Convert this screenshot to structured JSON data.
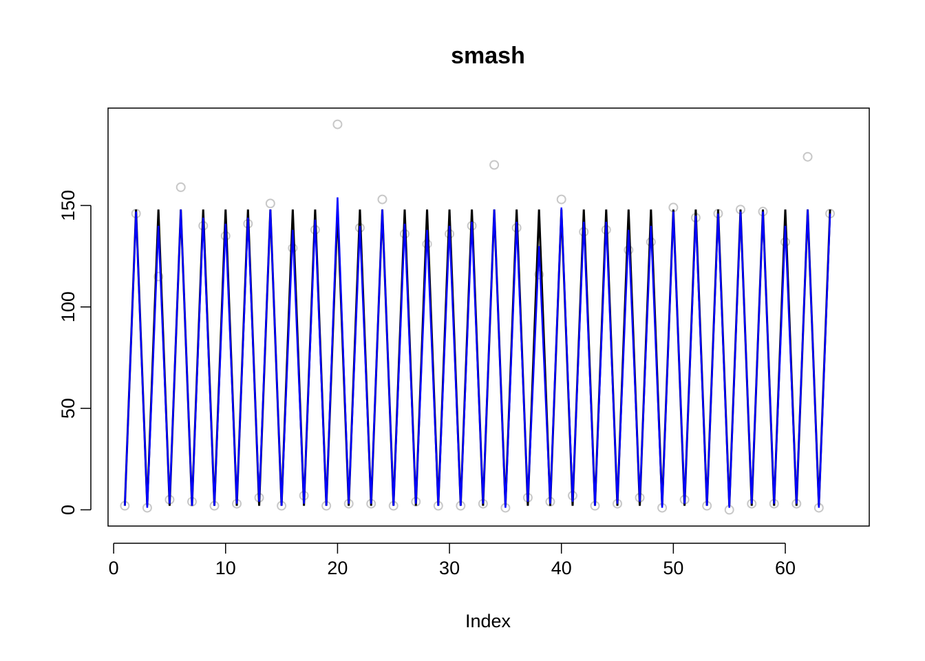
{
  "chart_data": {
    "type": "scatter",
    "title": "smash",
    "xlabel": "Index",
    "ylabel": "",
    "xlim": [
      -0.5,
      67.5
    ],
    "ylim": [
      -8,
      198
    ],
    "xticks": [
      0,
      10,
      20,
      30,
      40,
      50,
      60
    ],
    "yticks": [
      0,
      50,
      100,
      150
    ],
    "grid": false,
    "legend": "none",
    "colors": {
      "points": "#c8c8c8",
      "truth": "#000000",
      "estimate": "#0000ff",
      "frame": "#000000"
    },
    "series": [
      {
        "kind": "points",
        "values": [
          2,
          146,
          1,
          115,
          5,
          159,
          4,
          140,
          2,
          135,
          3,
          141,
          6,
          151,
          2,
          129,
          7,
          138,
          2,
          190,
          3,
          139,
          3,
          153,
          2,
          136,
          4,
          131,
          2,
          136,
          2,
          140,
          3,
          170,
          1,
          139,
          6,
          116,
          4,
          153,
          7,
          137,
          2,
          138,
          3,
          128,
          6,
          132,
          1,
          149,
          5,
          144,
          2,
          146,
          0,
          148,
          3,
          147,
          3,
          132,
          3,
          174,
          1,
          146
        ]
      },
      {
        "kind": "line",
        "values": [
          2,
          148,
          2,
          148,
          2,
          148,
          2,
          148,
          2,
          148,
          2,
          148,
          2,
          148,
          2,
          148,
          2,
          148,
          2,
          148,
          2,
          148,
          2,
          148,
          2,
          148,
          2,
          148,
          2,
          148,
          2,
          148,
          2,
          148,
          2,
          148,
          2,
          148,
          2,
          148,
          2,
          148,
          2,
          148,
          2,
          148,
          2,
          148,
          2,
          148,
          2,
          148,
          2,
          148,
          2,
          148,
          2,
          148,
          2,
          148,
          2,
          148,
          2,
          148
        ]
      },
      {
        "kind": "line",
        "values": [
          2,
          147,
          1,
          140,
          3,
          148,
          2,
          144,
          2,
          141,
          3,
          144,
          4,
          148,
          2,
          138,
          3,
          143,
          2,
          154,
          3,
          140,
          3,
          148,
          2,
          141,
          3,
          138,
          2,
          140,
          2,
          142,
          3,
          148,
          1,
          142,
          4,
          130,
          3,
          149,
          4,
          142,
          2,
          142,
          3,
          138,
          4,
          140,
          1,
          147,
          3,
          145,
          2,
          146,
          1,
          147,
          3,
          147,
          3,
          140,
          3,
          148,
          1,
          146
        ]
      }
    ]
  }
}
